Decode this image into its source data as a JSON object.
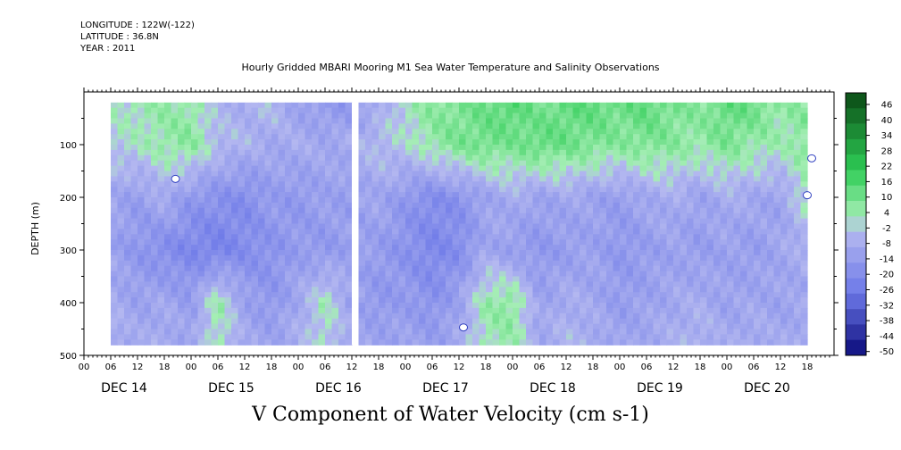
{
  "header": {
    "longitude": "LONGITUDE : 122W(-122)",
    "latitude": "LATITUDE : 36.8N",
    "year": "YEAR : 2011"
  },
  "chart_data": {
    "type": "heatmap",
    "title": "Hourly Gridded MBARI Mooring M1 Sea Water Temperature and Salinity Observations",
    "variable_label": "V Component of Water Velocity (cm s-1)",
    "ylabel": "DEPTH (m)",
    "y_axis": {
      "range": [
        0,
        500
      ],
      "direction": "down",
      "ticks": [
        100,
        200,
        300,
        400,
        500
      ]
    },
    "x_axis": {
      "hour_ticks": [
        "00",
        "06",
        "12",
        "18",
        "00",
        "06",
        "12",
        "18",
        "00",
        "06",
        "12",
        "18",
        "00",
        "06",
        "12",
        "18",
        "00",
        "06",
        "12",
        "18",
        "00",
        "06",
        "12",
        "18",
        "00",
        "06",
        "12",
        "18"
      ],
      "day_labels": [
        "DEC 14",
        "DEC 15",
        "DEC 16",
        "DEC 17",
        "DEC 18",
        "DEC 19",
        "DEC 20"
      ],
      "range_hours": [
        0,
        168
      ]
    },
    "data_extent": {
      "start_hour": 6,
      "end_hour": 162,
      "depth_min": 20,
      "depth_max": 480,
      "gap_hours": [
        60,
        61
      ]
    },
    "colorbar": {
      "levels": [
        "46",
        "40",
        "34",
        "28",
        "22",
        "16",
        "10",
        "4",
        "-2",
        "-8",
        "-14",
        "-20",
        "-26",
        "-32",
        "-38",
        "-44",
        "-50"
      ],
      "range": [
        -50,
        52
      ],
      "colors": {
        "strong_positive": "#0a4a14",
        "mid_positive": "#2ecc55",
        "weak_positive": "#a4eeb4",
        "weak_negative": "#b4b8f0",
        "mid_negative": "#6c78e8",
        "strong_negative": "#0a0a7a"
      }
    },
    "approximate_field": {
      "note_columns_hours": [
        6,
        12,
        18,
        24,
        30,
        36,
        42,
        48,
        54,
        60,
        66,
        72,
        78,
        84,
        90,
        96,
        102,
        108,
        114,
        120,
        126,
        132,
        138,
        144,
        150,
        156,
        162
      ],
      "depth_rows_m": [
        30,
        100,
        200,
        300,
        400,
        460
      ],
      "values_cm_s": [
        [
          2,
          4,
          6,
          6,
          -4,
          -6,
          -2,
          -10,
          -12,
          -14,
          -6,
          2,
          8,
          10,
          12,
          16,
          10,
          14,
          14,
          12,
          14,
          10,
          8,
          14,
          12,
          6,
          8
        ],
        [
          0,
          2,
          6,
          8,
          -2,
          -4,
          -8,
          -6,
          -8,
          -6,
          -2,
          0,
          6,
          10,
          12,
          10,
          14,
          12,
          10,
          8,
          10,
          8,
          6,
          10,
          6,
          4,
          8
        ],
        [
          -8,
          -12,
          -6,
          -14,
          -16,
          -18,
          -12,
          -14,
          -10,
          -12,
          -8,
          -14,
          -18,
          -16,
          -10,
          -6,
          -10,
          -8,
          -10,
          -12,
          -8,
          -6,
          -10,
          -6,
          -8,
          -10,
          4
        ],
        [
          -10,
          -14,
          -18,
          -20,
          -22,
          -18,
          -16,
          -12,
          -14,
          -10,
          -12,
          -16,
          -20,
          -18,
          -8,
          -12,
          -14,
          -12,
          -10,
          -14,
          -12,
          -10,
          -12,
          -10,
          -12,
          -8,
          -6
        ],
        [
          -6,
          -10,
          -8,
          -12,
          6,
          -10,
          -14,
          -8,
          4,
          -10,
          -14,
          -12,
          -16,
          -10,
          6,
          8,
          -10,
          -6,
          -8,
          -12,
          -10,
          -8,
          -6,
          -10,
          -8,
          -10,
          -8
        ],
        [
          -4,
          -8,
          -6,
          -10,
          4,
          -8,
          -10,
          -6,
          2,
          -8,
          -10,
          -10,
          -12,
          -8,
          4,
          6,
          -8,
          -4,
          -6,
          -10,
          -8,
          -6,
          -4,
          -8,
          -6,
          -8,
          -6
        ]
      ]
    }
  }
}
